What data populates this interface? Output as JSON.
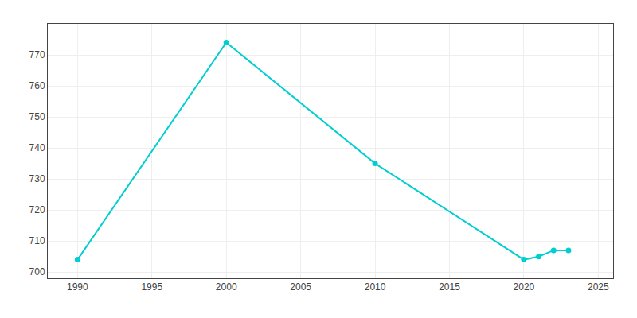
{
  "chart_data": {
    "type": "line",
    "x": [
      1990,
      2000,
      2010,
      2020,
      2021,
      2022,
      2023
    ],
    "values": [
      704,
      774,
      735,
      704,
      705,
      707,
      707
    ],
    "color": "#00CED1",
    "marker": "circle",
    "xlim": [
      1988,
      2026
    ],
    "ylim": [
      698,
      780
    ],
    "xticks": [
      1990,
      1995,
      2000,
      2005,
      2010,
      2015,
      2020,
      2025
    ],
    "yticks": [
      700,
      710,
      720,
      730,
      740,
      750,
      760,
      770
    ],
    "grid": true
  }
}
